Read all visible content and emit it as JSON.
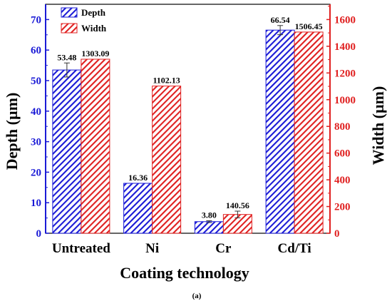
{
  "chart_data": {
    "type": "bar",
    "categories": [
      "Untreated",
      "Ni",
      "Cr",
      "Cd/Ti"
    ],
    "series": [
      {
        "name": "Depth",
        "axis": "left",
        "color": "#1a1ad6",
        "values": [
          53.48,
          16.36,
          3.8,
          66.54
        ],
        "labels": [
          "53.48",
          "16.36",
          "3.80",
          "66.54"
        ],
        "error": [
          2.3,
          0,
          0.3,
          1.5
        ]
      },
      {
        "name": "Width",
        "axis": "right",
        "color": "#e02020",
        "values": [
          1303.09,
          1102.13,
          140.56,
          1506.45
        ],
        "labels": [
          "1303.09",
          "1102.13",
          "140.56",
          "1506.45"
        ],
        "error": [
          0,
          0,
          25,
          0
        ]
      }
    ],
    "xlabel": "Coating technology",
    "ylabel": "Depth (µm)",
    "y2label": "Width (µm)",
    "ylim": [
      0,
      75
    ],
    "y2lim": [
      0,
      1714.29
    ],
    "yticks": [
      0,
      10,
      20,
      30,
      40,
      50,
      60,
      70
    ],
    "y2ticks": [
      0,
      200,
      400,
      600,
      800,
      1000,
      1200,
      1400,
      1600
    ],
    "legend_position": "top-left",
    "left_axis_color": "#1a1ad6",
    "right_axis_color": "#e02020"
  },
  "caption": "(a)"
}
